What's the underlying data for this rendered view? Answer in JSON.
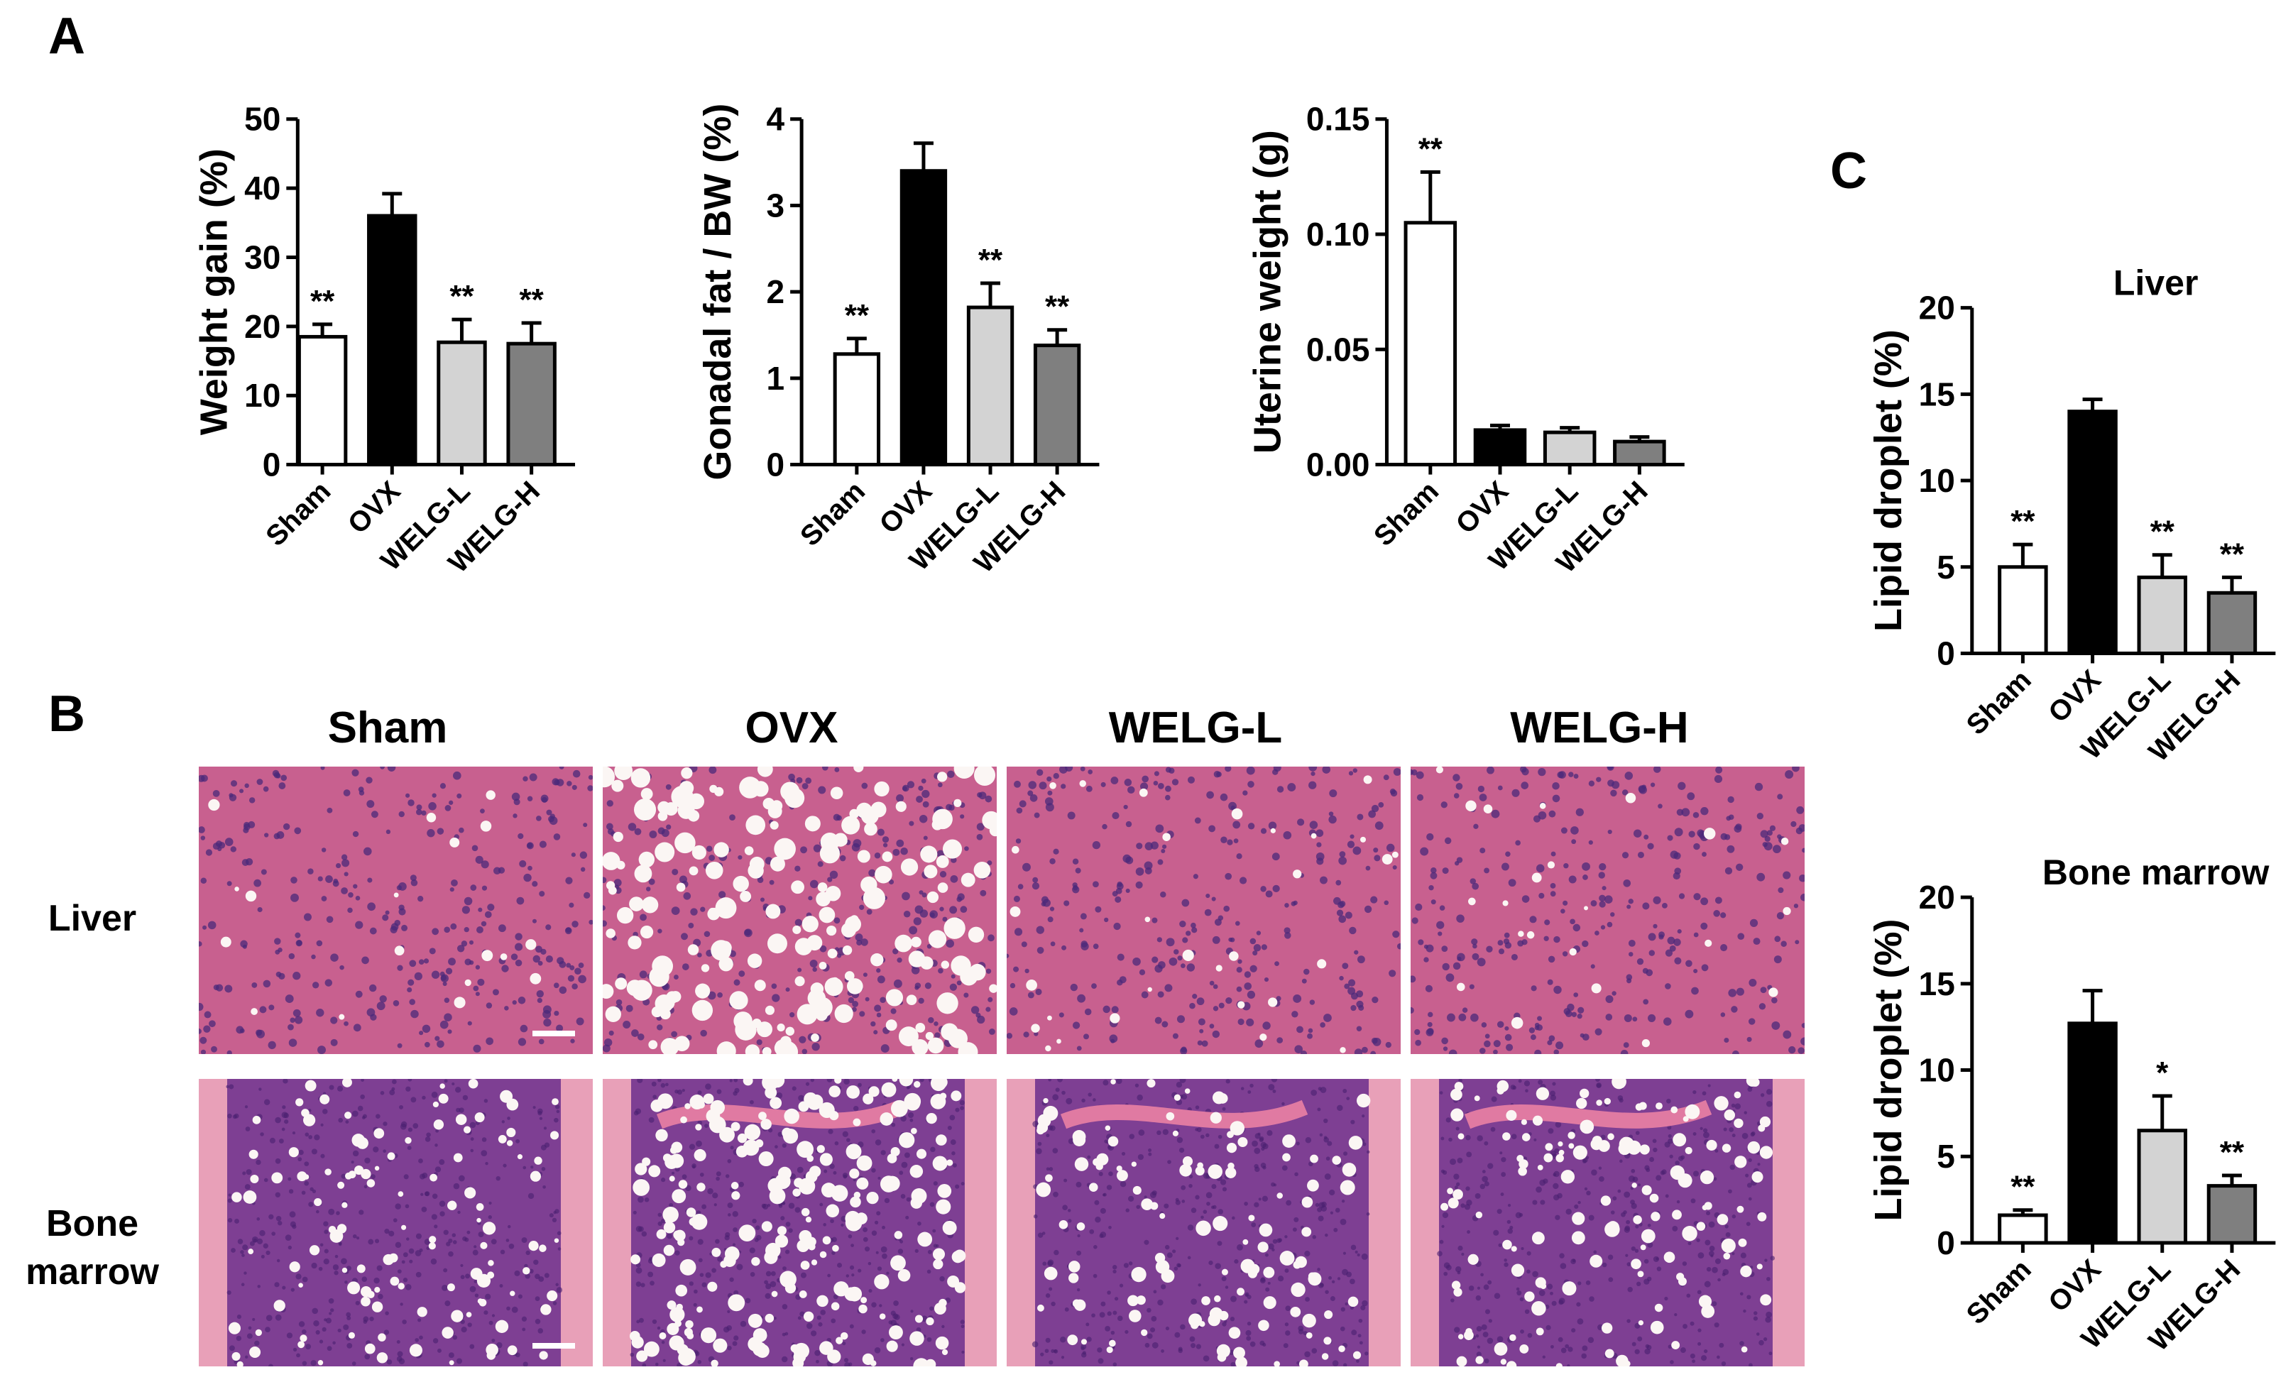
{
  "panel_labels": {
    "a": "A",
    "b": "B",
    "c": "C"
  },
  "histology": {
    "columns": [
      "Sham",
      "OVX",
      "WELG-L",
      "WELG-H"
    ],
    "rows": [
      {
        "label_lines": [
          "Liver"
        ]
      },
      {
        "label_lines": [
          "Bone",
          "marrow"
        ]
      }
    ]
  },
  "colors": {
    "Sham": "#ffffff",
    "OVX": "#000000",
    "WELG-L": "#d3d3d3",
    "WELG-H": "#808080",
    "liver_stain": "#c8608f",
    "marrow_stain": "#7e3f93",
    "bone_stain": "#e8a0b8"
  },
  "chart_data": [
    {
      "type": "bar",
      "categories": [
        "Sham",
        "OVX",
        "WELG-L",
        "WELG-H"
      ],
      "values": [
        18.5,
        36,
        17.7,
        17.5
      ],
      "errors": [
        1.8,
        3.2,
        3.3,
        3.0
      ],
      "significance": [
        "**",
        "",
        "**",
        "**"
      ],
      "ylabel": "Weight gain (%)",
      "title": "",
      "ylim": [
        0,
        50
      ],
      "yticks": [
        "0",
        "10",
        "20",
        "30",
        "40",
        "50"
      ]
    },
    {
      "type": "bar",
      "categories": [
        "Sham",
        "OVX",
        "WELG-L",
        "WELG-H"
      ],
      "values": [
        1.28,
        3.4,
        1.82,
        1.38
      ],
      "errors": [
        0.18,
        0.32,
        0.28,
        0.18
      ],
      "significance": [
        "**",
        "",
        "**",
        "**"
      ],
      "ylabel": "Gonadal fat / BW (%)",
      "title": "",
      "ylim": [
        0,
        4
      ],
      "yticks": [
        "0",
        "1",
        "2",
        "3",
        "4"
      ]
    },
    {
      "type": "bar",
      "categories": [
        "Sham",
        "OVX",
        "WELG-L",
        "WELG-H"
      ],
      "values": [
        0.105,
        0.015,
        0.014,
        0.01
      ],
      "errors": [
        0.022,
        0.002,
        0.002,
        0.002
      ],
      "significance": [
        "**",
        "",
        "",
        ""
      ],
      "ylabel": "Uterine weight (g)",
      "title": "",
      "ylim": [
        0,
        0.15
      ],
      "yticks": [
        "0.00",
        "0.05",
        "0.10",
        "0.15"
      ]
    },
    {
      "type": "bar",
      "categories": [
        "Sham",
        "OVX",
        "WELG-L",
        "WELG-H"
      ],
      "values": [
        5.0,
        14.0,
        4.4,
        3.5
      ],
      "errors": [
        1.3,
        0.7,
        1.3,
        0.9
      ],
      "significance": [
        "**",
        "",
        "**",
        "**"
      ],
      "ylabel": "Lipid droplet (%)",
      "title": "Liver",
      "ylim": [
        0,
        20
      ],
      "yticks": [
        "0",
        "5",
        "10",
        "15",
        "20"
      ]
    },
    {
      "type": "bar",
      "categories": [
        "Sham",
        "OVX",
        "WELG-L",
        "WELG-H"
      ],
      "values": [
        1.6,
        12.7,
        6.5,
        3.3
      ],
      "errors": [
        0.3,
        1.9,
        2.0,
        0.6
      ],
      "significance": [
        "**",
        "",
        "*",
        "**"
      ],
      "ylabel": "Lipid droplet (%)",
      "title": "Bone marrow",
      "ylim": [
        0,
        20
      ],
      "yticks": [
        "0",
        "5",
        "10",
        "15",
        "20"
      ]
    }
  ]
}
